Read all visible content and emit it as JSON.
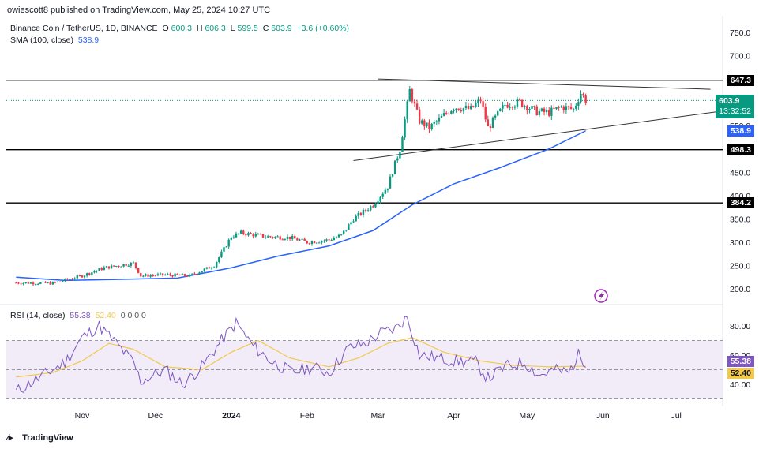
{
  "header": {
    "publish_line": "owiescott8 published on TradingView.com, May 25, 2024 10:27 UTC"
  },
  "legend": {
    "symbol": "Binance Coin / TetherUS, 1D, BINANCE",
    "open_label": "O",
    "open": "600.3",
    "high_label": "H",
    "high": "606.3",
    "low_label": "L",
    "low": "599.5",
    "close_label": "C",
    "close": "603.9",
    "change": "+3.6 (+0.60%)",
    "sma_label": "SMA (100, close)",
    "sma_value": "538.9",
    "rsi_label": "RSI (14, close)",
    "rsi_value": "55.38",
    "rsi_ma_value": "52.40",
    "rsi_zeros": "0 0 0 0"
  },
  "price_tags": {
    "resistance": "647.3",
    "last": "603.9",
    "countdown": "13:32:52",
    "sma": "538.9",
    "support_1": "498.3",
    "support_2": "384.2",
    "rsi": "55.38",
    "rsi_ma": "52.40"
  },
  "footer": {
    "brand": "TradingView"
  },
  "colors": {
    "up": "#089981",
    "down": "#f23645",
    "sma": "#2962ff",
    "rsi": "#7e57c2",
    "rsi_ma": "#f2c94c",
    "hline": "#000000",
    "rsi_band": "#ede7f6"
  },
  "icons": {
    "alert": "lightning-icon"
  },
  "chart_data": [
    {
      "type": "candlestick",
      "title": "Binance Coin / TetherUS, 1D, BINANCE",
      "ylim": [
        170,
        790
      ],
      "y_ticks": [
        200,
        250,
        300,
        350,
        400,
        450,
        550,
        700,
        750
      ],
      "x_ticks": [
        "Nov",
        "Dec",
        "2024",
        "Feb",
        "Mar",
        "Apr",
        "May",
        "Jun",
        "Jul"
      ],
      "horizontal_levels": [
        647.3,
        498.3,
        384.2
      ],
      "trendlines": [
        {
          "name": "upper",
          "from": [
            "2024-03-01",
            650
          ],
          "to": [
            "2024-07-15",
            628
          ]
        },
        {
          "name": "lower",
          "from": [
            "2024-02-20",
            475
          ],
          "to": [
            "2024-07-18",
            580
          ]
        }
      ],
      "sma_100": [
        [
          "2023-10-05",
          225
        ],
        [
          "2023-10-25",
          218
        ],
        [
          "2023-11-15",
          220
        ],
        [
          "2023-12-10",
          223
        ],
        [
          "2024-01-01",
          245
        ],
        [
          "2024-01-20",
          270
        ],
        [
          "2024-02-10",
          292
        ],
        [
          "2024-02-28",
          325
        ],
        [
          "2024-03-15",
          380
        ],
        [
          "2024-04-01",
          425
        ],
        [
          "2024-04-20",
          460
        ],
        [
          "2024-05-10",
          500
        ],
        [
          "2024-05-25",
          538.9
        ]
      ],
      "price_path": [
        [
          "2023-10-05",
          213
        ],
        [
          "2023-10-20",
          212
        ],
        [
          "2023-11-01",
          228
        ],
        [
          "2023-11-10",
          245
        ],
        [
          "2023-11-22",
          255
        ],
        [
          "2023-11-25",
          228
        ],
        [
          "2023-12-05",
          230
        ],
        [
          "2023-12-15",
          228
        ],
        [
          "2023-12-25",
          250
        ],
        [
          "2024-01-01",
          312
        ],
        [
          "2024-01-05",
          320
        ],
        [
          "2024-01-15",
          312
        ],
        [
          "2024-01-25",
          310
        ],
        [
          "2024-02-01",
          300
        ],
        [
          "2024-02-10",
          305
        ],
        [
          "2024-02-15",
          315
        ],
        [
          "2024-02-20",
          350
        ],
        [
          "2024-02-28",
          380
        ],
        [
          "2024-03-05",
          420
        ],
        [
          "2024-03-10",
          500
        ],
        [
          "2024-03-14",
          625
        ],
        [
          "2024-03-18",
          560
        ],
        [
          "2024-03-22",
          545
        ],
        [
          "2024-04-01",
          590
        ],
        [
          "2024-04-08",
          585
        ],
        [
          "2024-04-12",
          605
        ],
        [
          "2024-04-15",
          545
        ],
        [
          "2024-04-22",
          595
        ],
        [
          "2024-04-28",
          600
        ],
        [
          "2024-05-05",
          580
        ],
        [
          "2024-05-10",
          578
        ],
        [
          "2024-05-15",
          590
        ],
        [
          "2024-05-20",
          585
        ],
        [
          "2024-05-23",
          620
        ],
        [
          "2024-05-25",
          603.9
        ]
      ],
      "last": {
        "open": 600.3,
        "high": 606.3,
        "low": 599.5,
        "close": 603.9,
        "change": "+3.6 (+0.60%)"
      }
    },
    {
      "type": "line",
      "title": "RSI (14, close)",
      "ylim": [
        20,
        95
      ],
      "y_ticks": [
        40.0,
        60.0,
        80.0
      ],
      "band": [
        30,
        70
      ],
      "series": [
        {
          "name": "RSI",
          "values": [
            [
              "2023-10-05",
              35
            ],
            [
              "2023-10-15",
              45
            ],
            [
              "2023-10-25",
              55
            ],
            [
              "2023-11-01",
              72
            ],
            [
              "2023-11-08",
              80
            ],
            [
              "2023-11-15",
              68
            ],
            [
              "2023-11-22",
              55
            ],
            [
              "2023-11-25",
              42
            ],
            [
              "2023-12-05",
              50
            ],
            [
              "2023-12-12",
              40
            ],
            [
              "2023-12-20",
              52
            ],
            [
              "2023-12-28",
              70
            ],
            [
              "2024-01-03",
              82
            ],
            [
              "2024-01-10",
              66
            ],
            [
              "2024-01-18",
              55
            ],
            [
              "2024-01-26",
              48
            ],
            [
              "2024-02-03",
              52
            ],
            [
              "2024-02-10",
              48
            ],
            [
              "2024-02-18",
              65
            ],
            [
              "2024-02-25",
              68
            ],
            [
              "2024-03-02",
              75
            ],
            [
              "2024-03-08",
              78
            ],
            [
              "2024-03-13",
              86
            ],
            [
              "2024-03-18",
              60
            ],
            [
              "2024-03-25",
              58
            ],
            [
              "2024-04-02",
              56
            ],
            [
              "2024-04-10",
              55
            ],
            [
              "2024-04-15",
              44
            ],
            [
              "2024-04-22",
              52
            ],
            [
              "2024-04-30",
              55
            ],
            [
              "2024-05-06",
              46
            ],
            [
              "2024-05-12",
              50
            ],
            [
              "2024-05-18",
              48
            ],
            [
              "2024-05-22",
              60
            ],
            [
              "2024-05-25",
              55.38
            ]
          ]
        },
        {
          "name": "RSI MA",
          "values": [
            [
              "2023-10-05",
              45
            ],
            [
              "2023-10-20",
              48
            ],
            [
              "2023-11-01",
              56
            ],
            [
              "2023-11-12",
              68
            ],
            [
              "2023-11-22",
              64
            ],
            [
              "2023-12-05",
              52
            ],
            [
              "2023-12-20",
              50
            ],
            [
              "2024-01-01",
              62
            ],
            [
              "2024-01-12",
              70
            ],
            [
              "2024-01-25",
              58
            ],
            [
              "2024-02-10",
              52
            ],
            [
              "2024-02-22",
              58
            ],
            [
              "2024-03-05",
              68
            ],
            [
              "2024-03-15",
              72
            ],
            [
              "2024-03-28",
              62
            ],
            [
              "2024-04-12",
              56
            ],
            [
              "2024-04-25",
              53
            ],
            [
              "2024-05-10",
              52
            ],
            [
              "2024-05-25",
              52.4
            ]
          ]
        }
      ]
    }
  ]
}
